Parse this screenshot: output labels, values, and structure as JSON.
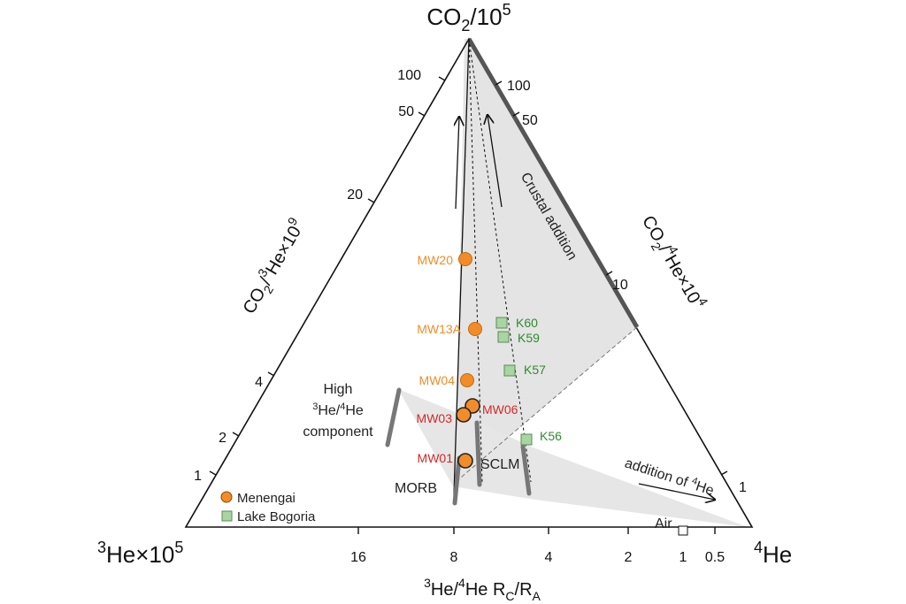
{
  "chart_data": {
    "type": "scatter",
    "subtype": "ternary",
    "vertices": {
      "top": {
        "base": "CO",
        "sub": "2",
        "rest": "/10",
        "sup": "5"
      },
      "left": {
        "pre_sup": "3",
        "rest": "He×10",
        "sup": "5"
      },
      "right": {
        "pre_sup": "4",
        "rest": "He"
      }
    },
    "axes": {
      "left_label": "CO₂/³He×10⁹",
      "right_label": "CO₂/⁴He×10⁴",
      "bottom_label": "³He/⁴He R_C/R_A",
      "left_ticks": [
        "100",
        "50",
        "20",
        "4",
        "2",
        "1"
      ],
      "right_ticks": [
        "100",
        "50",
        "10",
        "1"
      ],
      "bottom_ticks": [
        "16",
        "8",
        "4",
        "2",
        "1",
        "0.5"
      ]
    },
    "annotations": {
      "crustal": "Crustal addition",
      "high_line1": "High",
      "high_line2_sup1": "3",
      "high_line2_mid": "He/",
      "high_line2_sup2": "4",
      "high_line2_end": "He",
      "high_line3": "component",
      "sclm": "SCLM",
      "morb": "MORB",
      "addition_pre": "addition of ",
      "addition_sup": "4",
      "addition_end": "He",
      "air": "Air"
    },
    "legend": {
      "position": "bottom-left",
      "entries": [
        "Menengai",
        "Lake Bogoria"
      ]
    },
    "series": [
      {
        "name": "Menengai",
        "marker": "circle",
        "color": "#F28C28",
        "points": [
          {
            "label": "MW20",
            "label_color": "#F28C28"
          },
          {
            "label": "MW13A",
            "label_color": "#F28C28"
          },
          {
            "label": "MW04",
            "label_color": "#F28C28"
          },
          {
            "label": "MW06",
            "label_color": "#D62728"
          },
          {
            "label": "MW03",
            "label_color": "#D62728"
          },
          {
            "label": "MW01",
            "label_color": "#D62728"
          }
        ]
      },
      {
        "name": "Lake Bogoria",
        "marker": "square",
        "color": "#A8D5A2",
        "points": [
          {
            "label": "K60",
            "label_color": "#2E8B2E"
          },
          {
            "label": "K59",
            "label_color": "#2E8B2E"
          },
          {
            "label": "K57",
            "label_color": "#2E8B2E"
          },
          {
            "label": "K56",
            "label_color": "#2E8B2E"
          }
        ]
      }
    ],
    "colors": {
      "menengai": "#F28C28",
      "bogoria": "#A8D5A2",
      "red_label": "#D62728",
      "green_label": "#2E8B2E",
      "region": "#e6e6e6"
    }
  }
}
